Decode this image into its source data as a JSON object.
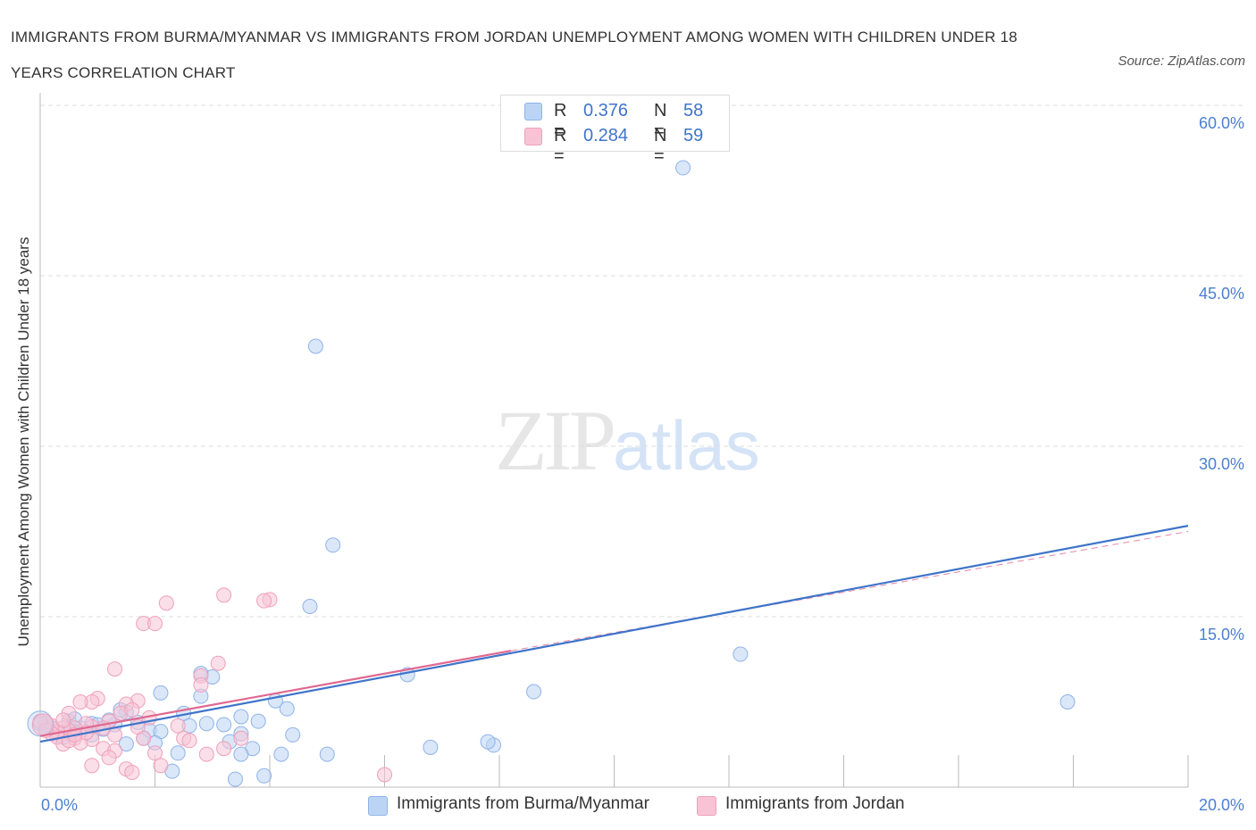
{
  "title": "IMMIGRANTS FROM BURMA/MYANMAR VS IMMIGRANTS FROM JORDAN UNEMPLOYMENT AMONG WOMEN WITH CHILDREN UNDER 18 YEARS CORRELATION CHART",
  "source": "Source: ZipAtlas.com",
  "watermark": {
    "zip": "ZIP",
    "atlas": "atlas"
  },
  "colors": {
    "blue": "#3f74c9",
    "blue_fill": "#bcd4f4",
    "pink": "#e06890",
    "pink_fill": "#f8c4d5",
    "grid": "#dddddd",
    "axis": "#bbbbbb"
  },
  "legend": {
    "rows": [
      {
        "r_label": "R =",
        "r_value": "0.376",
        "n_label": "N =",
        "n_value": "58"
      },
      {
        "r_label": "R =",
        "r_value": "0.284",
        "n_label": "N =",
        "n_value": "59"
      }
    ]
  },
  "chart_data": {
    "type": "scatter",
    "title": "IMMIGRANTS FROM BURMA/MYANMAR VS IMMIGRANTS FROM JORDAN UNEMPLOYMENT AMONG WOMEN WITH CHILDREN UNDER 18 YEARS CORRELATION CHART",
    "xlabel": "",
    "ylabel": "Unemployment Among Women with Children Under 18 years",
    "xlim": [
      0,
      20
    ],
    "ylim": [
      0,
      60
    ],
    "x_tick_labels": [
      "0.0%",
      "20.0%"
    ],
    "y_ticks": [
      15,
      30,
      45,
      60
    ],
    "y_tick_labels": [
      "15.0%",
      "30.0%",
      "45.0%",
      "60.0%"
    ],
    "grid": true,
    "legend_position": "top-center",
    "series": [
      {
        "name": "Immigrants from Burma/Myanmar",
        "R": 0.376,
        "N": 58,
        "trend": {
          "x": [
            0,
            20
          ],
          "y": [
            4.0,
            23.0
          ]
        },
        "points": [
          [
            11.2,
            54.5
          ],
          [
            4.8,
            38.8
          ],
          [
            5.1,
            21.3
          ],
          [
            4.7,
            15.9
          ],
          [
            12.2,
            11.7
          ],
          [
            17.9,
            7.5
          ],
          [
            8.6,
            8.4
          ],
          [
            6.4,
            9.9
          ],
          [
            3.0,
            9.7
          ],
          [
            2.8,
            10.0
          ],
          [
            2.1,
            8.3
          ],
          [
            2.8,
            8.0
          ],
          [
            4.1,
            7.6
          ],
          [
            4.3,
            6.9
          ],
          [
            3.8,
            5.8
          ],
          [
            2.5,
            6.5
          ],
          [
            3.5,
            6.2
          ],
          [
            3.2,
            5.5
          ],
          [
            2.9,
            5.6
          ],
          [
            2.6,
            5.4
          ],
          [
            3.5,
            4.7
          ],
          [
            4.4,
            4.6
          ],
          [
            7.9,
            3.7
          ],
          [
            1.3,
            5.5
          ],
          [
            1.7,
            5.7
          ],
          [
            1.9,
            5.0
          ],
          [
            2.1,
            4.9
          ],
          [
            1.5,
            6.6
          ],
          [
            1.8,
            4.3
          ],
          [
            2.0,
            3.9
          ],
          [
            1.1,
            5.1
          ],
          [
            0.9,
            5.6
          ],
          [
            0.7,
            5.2
          ],
          [
            0.9,
            4.6
          ],
          [
            0.6,
            4.8
          ],
          [
            0.5,
            4.7
          ],
          [
            0.5,
            5.8
          ],
          [
            0.3,
            4.9
          ],
          [
            0.2,
            5.2
          ],
          [
            0.1,
            5.3
          ],
          [
            0.0,
            5.6
          ],
          [
            0.4,
            4.4
          ],
          [
            3.3,
            4.0
          ],
          [
            3.7,
            3.4
          ],
          [
            2.4,
            3.0
          ],
          [
            3.5,
            2.9
          ],
          [
            5.0,
            2.9
          ],
          [
            4.2,
            2.9
          ],
          [
            6.8,
            3.5
          ],
          [
            7.8,
            4.0
          ],
          [
            2.3,
            1.4
          ],
          [
            3.4,
            0.7
          ],
          [
            3.9,
            1.0
          ],
          [
            1.2,
            5.9
          ],
          [
            1.4,
            6.8
          ],
          [
            1.0,
            5.5
          ],
          [
            1.5,
            3.8
          ],
          [
            0.6,
            6.0
          ]
        ]
      },
      {
        "name": "Immigrants from Jordan",
        "R": 0.284,
        "N": 59,
        "trend": {
          "x": [
            0,
            8.2
          ],
          "y": [
            4.5,
            12.0
          ]
        },
        "trend_extension": {
          "x": [
            8.2,
            20
          ],
          "y": [
            12.0,
            22.5
          ]
        },
        "points": [
          [
            3.2,
            16.9
          ],
          [
            4.0,
            16.5
          ],
          [
            3.9,
            16.4
          ],
          [
            2.2,
            16.2
          ],
          [
            1.8,
            14.4
          ],
          [
            2.0,
            14.4
          ],
          [
            1.3,
            10.4
          ],
          [
            3.1,
            10.9
          ],
          [
            2.8,
            9.8
          ],
          [
            2.8,
            9.0
          ],
          [
            1.7,
            7.6
          ],
          [
            1.0,
            7.8
          ],
          [
            1.5,
            7.3
          ],
          [
            0.9,
            7.5
          ],
          [
            0.7,
            7.5
          ],
          [
            0.5,
            6.5
          ],
          [
            1.4,
            6.5
          ],
          [
            1.6,
            6.8
          ],
          [
            1.9,
            6.1
          ],
          [
            2.4,
            5.4
          ],
          [
            1.2,
            5.8
          ],
          [
            0.9,
            5.3
          ],
          [
            0.8,
            5.6
          ],
          [
            0.6,
            5.2
          ],
          [
            0.5,
            5.0
          ],
          [
            0.4,
            5.2
          ],
          [
            0.3,
            4.9
          ],
          [
            0.2,
            5.4
          ],
          [
            0.1,
            5.6
          ],
          [
            0.0,
            5.8
          ],
          [
            0.3,
            4.4
          ],
          [
            0.6,
            4.3
          ],
          [
            0.9,
            4.2
          ],
          [
            1.3,
            4.6
          ],
          [
            1.8,
            4.3
          ],
          [
            2.5,
            4.3
          ],
          [
            3.5,
            4.3
          ],
          [
            0.4,
            3.8
          ],
          [
            0.7,
            3.9
          ],
          [
            1.1,
            3.4
          ],
          [
            1.3,
            3.2
          ],
          [
            1.2,
            2.6
          ],
          [
            2.0,
            3.0
          ],
          [
            2.9,
            2.9
          ],
          [
            3.2,
            3.4
          ],
          [
            0.9,
            1.9
          ],
          [
            1.5,
            1.6
          ],
          [
            1.6,
            1.3
          ],
          [
            2.1,
            1.9
          ],
          [
            6.0,
            1.1
          ],
          [
            0.2,
            4.7
          ],
          [
            0.5,
            4.1
          ],
          [
            0.1,
            5.0
          ],
          [
            0.8,
            4.8
          ],
          [
            1.1,
            5.2
          ],
          [
            1.7,
            5.3
          ],
          [
            2.6,
            4.1
          ],
          [
            0.4,
            5.9
          ],
          [
            0.6,
            4.6
          ]
        ]
      }
    ]
  },
  "bottom_legend": [
    {
      "label": "Immigrants from Burma/Myanmar"
    },
    {
      "label": "Immigrants from Jordan"
    }
  ]
}
